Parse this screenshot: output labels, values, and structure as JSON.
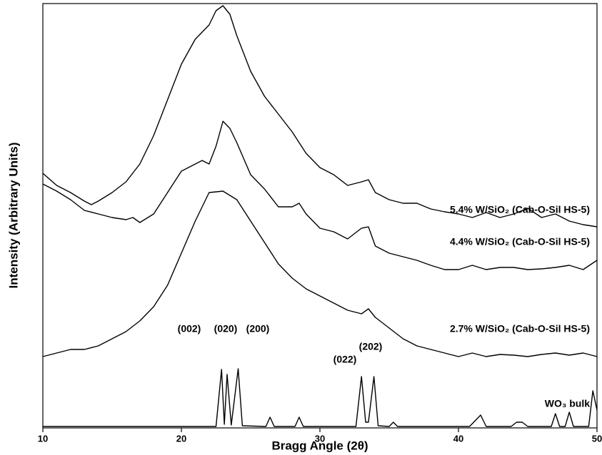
{
  "chart_data": {
    "type": "line",
    "x_label": "Bragg Angle (2θ)",
    "y_label": "Intensity (Arbitrary Units)",
    "xlim": [
      10,
      50
    ],
    "xticks": [
      10,
      20,
      30,
      40,
      50
    ],
    "ylim": [
      0,
      595
    ],
    "annotations": [
      "(002)",
      "(020)",
      "(200)",
      "(022)",
      "(202)"
    ],
    "series": [
      {
        "name": "5.4% W/SiO₂ (Cab-O-Sil HS-5)",
        "color": "#000000",
        "x": [
          10,
          11,
          12,
          13,
          13.5,
          14,
          15,
          16,
          17,
          18,
          19,
          20,
          21,
          22,
          22.5,
          23,
          23.5,
          24,
          25,
          26,
          27,
          28,
          29,
          30,
          31,
          32,
          33,
          33.5,
          34,
          35,
          36,
          37,
          38,
          39,
          40,
          41,
          42,
          43,
          44,
          45,
          46,
          47,
          48,
          49,
          50
        ],
        "values": [
          357,
          340,
          330,
          318,
          313,
          318,
          330,
          345,
          370,
          410,
          460,
          510,
          545,
          565,
          585,
          592,
          580,
          550,
          500,
          465,
          440,
          415,
          385,
          365,
          355,
          340,
          345,
          348,
          330,
          320,
          315,
          315,
          307,
          303,
          300,
          295,
          302,
          295,
          300,
          308,
          295,
          300,
          290,
          285,
          282
        ]
      },
      {
        "name": "4.4% W/SiO₂ (Cab-O-Sil HS-5)",
        "color": "#000000",
        "x": [
          10,
          11,
          12,
          13,
          14,
          15,
          16,
          16.5,
          17,
          18,
          19,
          20,
          21,
          21.5,
          22,
          22.5,
          23,
          23.5,
          24,
          25,
          26,
          27,
          28,
          28.5,
          29,
          30,
          31,
          32,
          33,
          33.5,
          34,
          35,
          36,
          37,
          38,
          39,
          40,
          41,
          42,
          43,
          44,
          45,
          46,
          47,
          48,
          49,
          50
        ],
        "values": [
          342,
          332,
          320,
          305,
          300,
          295,
          292,
          295,
          288,
          300,
          330,
          360,
          370,
          375,
          370,
          395,
          430,
          420,
          400,
          355,
          335,
          310,
          310,
          315,
          300,
          280,
          275,
          265,
          280,
          282,
          255,
          245,
          240,
          235,
          228,
          222,
          222,
          228,
          222,
          225,
          225,
          222,
          223,
          225,
          228,
          222,
          235
        ]
      },
      {
        "name": "2.7% W/SiO₂ (Cab-O-Sil HS-5)",
        "color": "#000000",
        "x": [
          10,
          11,
          12,
          13,
          14,
          15,
          16,
          17,
          18,
          19,
          20,
          21,
          22,
          23,
          24,
          25,
          26,
          27,
          28,
          29,
          30,
          31,
          32,
          33,
          33.5,
          34,
          35,
          36,
          37,
          38,
          39,
          40,
          41,
          42,
          43,
          44,
          45,
          46,
          47,
          48,
          49,
          50
        ],
        "values": [
          100,
          105,
          110,
          110,
          115,
          125,
          135,
          150,
          170,
          200,
          245,
          290,
          330,
          332,
          320,
          290,
          260,
          230,
          210,
          195,
          185,
          175,
          165,
          160,
          167,
          155,
          140,
          125,
          115,
          110,
          105,
          100,
          105,
          100,
          103,
          102,
          100,
          103,
          105,
          102,
          105,
          100
        ]
      },
      {
        "name": "WO₃ bulk",
        "color": "#000000",
        "x": [
          10,
          22.5,
          22.9,
          23.1,
          23.3,
          23.6,
          24.1,
          24.4,
          26.1,
          26.4,
          26.7,
          28.2,
          28.5,
          28.8,
          32.6,
          33.0,
          33.3,
          33.5,
          33.9,
          34.2,
          35.0,
          35.3,
          35.6,
          40.8,
          41.3,
          41.6,
          42.0,
          43.8,
          44.2,
          44.6,
          45.0,
          46.7,
          47.0,
          47.3,
          47.7,
          48.0,
          48.3,
          49.4,
          49.7,
          50
        ],
        "values": [
          2,
          2,
          82,
          5,
          75,
          4,
          83,
          3,
          2,
          15,
          2,
          2,
          15,
          2,
          2,
          72,
          8,
          8,
          72,
          3,
          2,
          8,
          2,
          2,
          12,
          18,
          2,
          2,
          8,
          8,
          2,
          2,
          20,
          2,
          2,
          22,
          2,
          2,
          52,
          25
        ]
      }
    ]
  }
}
